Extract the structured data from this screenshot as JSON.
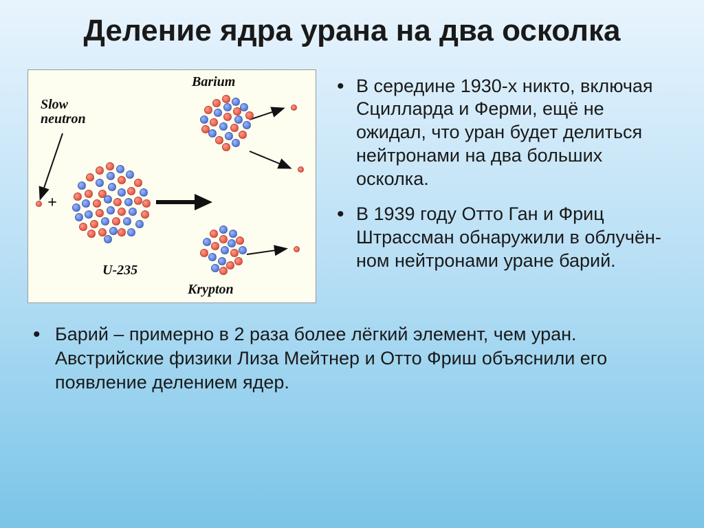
{
  "title": "Деление ядра урана на два осколка",
  "diagram": {
    "labels": {
      "slow_neutron": "Slow\nneutron",
      "barium": "Barium",
      "krypton": "Krypton",
      "u235": "U-235",
      "plus": "+"
    },
    "colors": {
      "proton": "#e23b2a",
      "neutron_blue": "#3a5fd0",
      "background": "#fefef0",
      "arrow": "#111111"
    }
  },
  "bullets": [
    "В середине 1930-х никто, включая Сцилларда и Ферми, ещё не ожидал, что уран будет делиться нейтронами на два больших осколка.",
    "В 1939 году Отто Ган и Фриц Штрассман обнаружили в облучён-ном нейтронами уране барий."
  ],
  "bottom": "Барий – примерно в 2 раза более лёгкий элемент, чем уран. Австрийские физики Лиза Мейтнер и Отто Фриш объяснили его появление делением ядер.",
  "style": {
    "title_fontsize": 44,
    "body_fontsize": 27,
    "gradient_top": "#e8f4fd",
    "gradient_mid": "#b8dff5",
    "gradient_bot": "#7ac5e8"
  }
}
